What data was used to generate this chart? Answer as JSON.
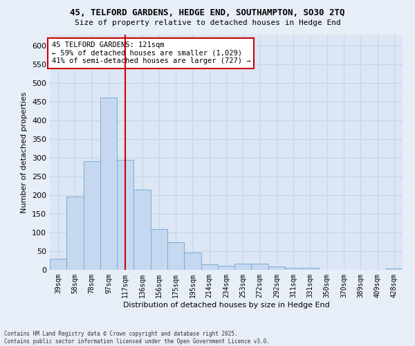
{
  "title_line1": "45, TELFORD GARDENS, HEDGE END, SOUTHAMPTON, SO30 2TQ",
  "title_line2": "Size of property relative to detached houses in Hedge End",
  "xlabel": "Distribution of detached houses by size in Hedge End",
  "ylabel": "Number of detached properties",
  "categories": [
    "39sqm",
    "58sqm",
    "78sqm",
    "97sqm",
    "117sqm",
    "136sqm",
    "156sqm",
    "175sqm",
    "195sqm",
    "214sqm",
    "234sqm",
    "253sqm",
    "272sqm",
    "292sqm",
    "311sqm",
    "331sqm",
    "350sqm",
    "370sqm",
    "389sqm",
    "409sqm",
    "428sqm"
  ],
  "values": [
    30,
    197,
    290,
    461,
    295,
    215,
    110,
    75,
    46,
    14,
    11,
    17,
    17,
    9,
    5,
    5,
    0,
    0,
    0,
    0,
    3
  ],
  "bar_color": "#c5d8ef",
  "bar_edge_color": "#7aadd4",
  "vline_x": 4,
  "vline_color": "#cc0000",
  "annotation_text": "45 TELFORD GARDENS: 121sqm\n← 59% of detached houses are smaller (1,029)\n41% of semi-detached houses are larger (727) →",
  "annotation_box_color": "#ffffff",
  "annotation_box_edge": "#cc0000",
  "ylim": [
    0,
    630
  ],
  "yticks": [
    0,
    50,
    100,
    150,
    200,
    250,
    300,
    350,
    400,
    450,
    500,
    550,
    600
  ],
  "grid_color": "#c8d4e8",
  "bg_color": "#dce6f5",
  "fig_bg_color": "#e8eef8",
  "footer_line1": "Contains HM Land Registry data © Crown copyright and database right 2025.",
  "footer_line2": "Contains public sector information licensed under the Open Government Licence v3.0."
}
